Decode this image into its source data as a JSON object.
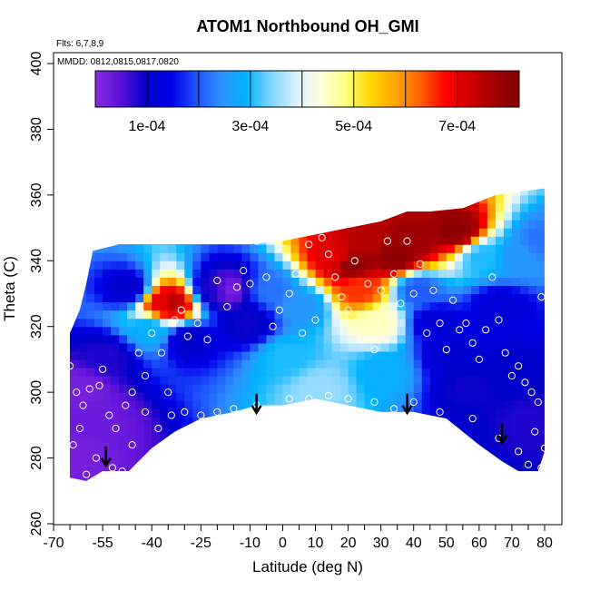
{
  "chart_data": {
    "type": "heatmap",
    "title": "ATOM1 Northbound OH_GMI",
    "annotations": [
      "Flts: 6,7,8,9",
      "MMDD: 0812,0815,0817,0820"
    ],
    "xlabel": "Latitude (deg N)",
    "ylabel": "Theta (C)",
    "xlim": [
      -70,
      80
    ],
    "ylim": [
      260,
      400
    ],
    "x_tick_labels": [
      "-70",
      "-55",
      "-40",
      "-25",
      "-10",
      "0",
      "10",
      "20",
      "30",
      "40",
      "50",
      "60",
      "70",
      "80"
    ],
    "x_tick_values": [
      -70,
      -55,
      -40,
      -25,
      -10,
      0,
      10,
      20,
      30,
      40,
      50,
      60,
      70,
      80
    ],
    "x_minor_ticks": [
      -65,
      -60,
      -50,
      -45,
      -35,
      -30,
      -20,
      -15,
      -5,
      5,
      15,
      25,
      35,
      45,
      55,
      65,
      75
    ],
    "y_tick_labels": [
      "260",
      "280",
      "300",
      "320",
      "340",
      "360",
      "380",
      "400"
    ],
    "y_tick_values": [
      260,
      280,
      300,
      320,
      340,
      360,
      380,
      400
    ],
    "colorbar": {
      "range": [
        0,
        0.00082
      ],
      "tick_labels": [
        "1e-04",
        "3e-04",
        "5e-04",
        "7e-04"
      ],
      "tick_values": [
        0.0001,
        0.0003,
        0.0005,
        0.0007
      ],
      "colors": [
        "#8a2be2",
        "#5a10d8",
        "#0000c8",
        "#0000e6",
        "#1e50ff",
        "#2e90ff",
        "#00b4ff",
        "#7fd4ff",
        "#d8f2ff",
        "#ffffe0",
        "#ffff80",
        "#ffd700",
        "#ffa500",
        "#ff6000",
        "#ff0000",
        "#d00000",
        "#a00000",
        "#800000"
      ]
    },
    "series": [
      {
        "values": [
          [
            -65,
            280,
            2e-05
          ],
          [
            -63,
            300,
            2e-05
          ],
          [
            -58,
            290,
            3e-05
          ],
          [
            -55,
            310,
            8e-05
          ],
          [
            -48,
            330,
            0.0001
          ],
          [
            -38,
            326,
            0.0007
          ],
          [
            -35,
            326,
            0.00075
          ],
          [
            -42,
            318,
            0.00028
          ],
          [
            -30,
            315,
            0.0001
          ],
          [
            -22,
            330,
            8e-05
          ],
          [
            -18,
            330,
            2e-05
          ],
          [
            -12,
            320,
            9e-05
          ],
          [
            -5,
            330,
            0.00022
          ],
          [
            0,
            310,
            0.0003
          ],
          [
            5,
            325,
            0.00025
          ],
          [
            10,
            300,
            0.00035
          ],
          [
            15,
            340,
            0.0007
          ],
          [
            20,
            338,
            0.0008
          ],
          [
            22,
            330,
            0.00065
          ],
          [
            25,
            345,
            0.00075
          ],
          [
            28,
            320,
            0.00045
          ],
          [
            30,
            305,
            0.00028
          ],
          [
            33,
            340,
            0.0008
          ],
          [
            38,
            345,
            0.00078
          ],
          [
            40,
            330,
            0.0002
          ],
          [
            45,
            320,
            0.00012
          ],
          [
            50,
            310,
            0.00011
          ],
          [
            55,
            300,
            9e-05
          ],
          [
            60,
            340,
            0.0003
          ],
          [
            65,
            325,
            0.00012
          ],
          [
            70,
            305,
            0.0001
          ],
          [
            75,
            290,
            8e-05
          ],
          [
            78,
            345,
            0.00022
          ],
          [
            70,
            340,
            0.00025
          ],
          [
            52,
            348,
            0.0008
          ]
        ]
      }
    ],
    "sample_markers": [
      [
        -65,
        308
      ],
      [
        -63,
        300
      ],
      [
        -61,
        296
      ],
      [
        -59,
        301
      ],
      [
        -56,
        302
      ],
      [
        -55,
        307
      ],
      [
        -53,
        293
      ],
      [
        -51,
        289
      ],
      [
        -48,
        296
      ],
      [
        -46,
        300
      ],
      [
        -44,
        312
      ],
      [
        -42,
        305
      ],
      [
        -40,
        318
      ],
      [
        -37,
        312
      ],
      [
        -35,
        300
      ],
      [
        -33,
        322
      ],
      [
        -31,
        325
      ],
      [
        -29,
        317
      ],
      [
        -26,
        321
      ],
      [
        -23,
        316
      ],
      [
        -20,
        334
      ],
      [
        -17,
        326
      ],
      [
        -14,
        332
      ],
      [
        -12,
        337
      ],
      [
        -10,
        333
      ],
      [
        -8,
        346
      ],
      [
        -5,
        335
      ],
      [
        -3,
        320
      ],
      [
        -1,
        325
      ],
      [
        2,
        330
      ],
      [
        4,
        336
      ],
      [
        6,
        318
      ],
      [
        8,
        345
      ],
      [
        10,
        322
      ],
      [
        12,
        347
      ],
      [
        14,
        342
      ],
      [
        16,
        335
      ],
      [
        18,
        329
      ],
      [
        20,
        325
      ],
      [
        22,
        340
      ],
      [
        24,
        316
      ],
      [
        26,
        333
      ],
      [
        28,
        313
      ],
      [
        30,
        331
      ],
      [
        32,
        346
      ],
      [
        34,
        336
      ],
      [
        36,
        327
      ],
      [
        38,
        346
      ],
      [
        40,
        330
      ],
      [
        42,
        339
      ],
      [
        44,
        318
      ],
      [
        46,
        331
      ],
      [
        48,
        321
      ],
      [
        50,
        313
      ],
      [
        52,
        328
      ],
      [
        54,
        319
      ],
      [
        56,
        321
      ],
      [
        58,
        315
      ],
      [
        60,
        310
      ],
      [
        62,
        319
      ],
      [
        64,
        335
      ],
      [
        66,
        322
      ],
      [
        68,
        312
      ],
      [
        70,
        305
      ],
      [
        72,
        308
      ],
      [
        74,
        303
      ],
      [
        76,
        300
      ],
      [
        78,
        297
      ],
      [
        79,
        329
      ],
      [
        80,
        283
      ],
      [
        -64,
        284
      ],
      [
        -62,
        289
      ],
      [
        -60,
        275
      ],
      [
        -57,
        280
      ],
      [
        -52,
        277
      ],
      [
        -49,
        276
      ],
      [
        -46,
        284
      ],
      [
        -42,
        294
      ],
      [
        -38,
        289
      ],
      [
        -34,
        293
      ],
      [
        -30,
        294
      ],
      [
        -25,
        293
      ],
      [
        -20,
        294
      ],
      [
        -15,
        295
      ],
      [
        -8,
        296
      ],
      [
        -3,
        295
      ],
      [
        2,
        298
      ],
      [
        8,
        298
      ],
      [
        14,
        299
      ],
      [
        20,
        298
      ],
      [
        28,
        297
      ],
      [
        34,
        295
      ],
      [
        40,
        297
      ],
      [
        48,
        294
      ],
      [
        58,
        292
      ],
      [
        66,
        286
      ],
      [
        72,
        282
      ],
      [
        75,
        278
      ],
      [
        77,
        288
      ],
      [
        79,
        277
      ]
    ],
    "arrows": [
      [
        -54,
        278
      ],
      [
        -8,
        294
      ],
      [
        38,
        294
      ],
      [
        67,
        285
      ]
    ]
  }
}
